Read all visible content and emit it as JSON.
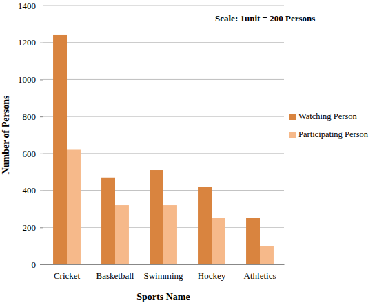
{
  "chart_data": {
    "type": "bar",
    "x_label": "Sports Name",
    "y_label": "Number of Persons",
    "annotations": [
      "Scale: 1unit = 200 Persons"
    ],
    "categories": [
      "Cricket",
      "Basketball",
      "Swimming",
      "Hockey",
      "Athletics"
    ],
    "series": [
      {
        "name": "Watching Person",
        "color": "#d9843f",
        "values": [
          1240,
          470,
          510,
          420,
          250
        ]
      },
      {
        "name": "Participating Person",
        "color": "#f6b98a",
        "values": [
          620,
          320,
          320,
          250,
          100
        ]
      }
    ],
    "ylim": [
      0,
      1400
    ],
    "yticks": [
      0,
      200,
      400,
      600,
      800,
      1000,
      1200,
      1400
    ],
    "grid": true,
    "legend": "right"
  }
}
